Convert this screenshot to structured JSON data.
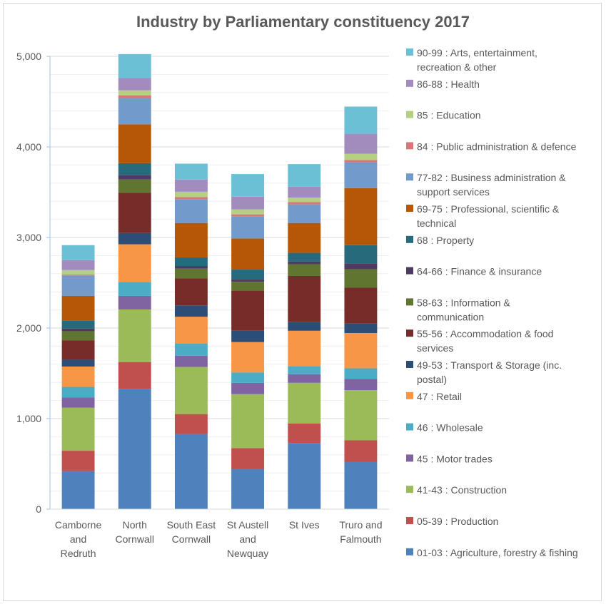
{
  "chart_data": {
    "type": "bar",
    "stacked": true,
    "title": "Industry by Parliamentary constituency 2017",
    "xlabel": "",
    "ylabel": "",
    "ylim": [
      0,
      5000
    ],
    "yticks": [
      0,
      1000,
      2000,
      3000,
      4000,
      5000
    ],
    "ytick_labels": [
      "0",
      "1,000",
      "2,000",
      "3,000",
      "4,000",
      "5,000"
    ],
    "grid": true,
    "legend_position": "right",
    "categories": [
      [
        "Camborne",
        "and",
        "Redruth"
      ],
      [
        "North",
        "Cornwall"
      ],
      [
        "South East",
        "Cornwall"
      ],
      [
        "St Austell",
        "and",
        "Newquay"
      ],
      [
        "St Ives"
      ],
      [
        "Truro and",
        "Falmouth"
      ]
    ],
    "series": [
      {
        "name": "01-03 : Agriculture, forestry & fishing",
        "legend_lines": [
          "01-03 : Agriculture, forestry & fishing"
        ],
        "color": "#4f81bd",
        "values": [
          420,
          1330,
          830,
          445,
          730,
          520
        ]
      },
      {
        "name": "05-39 : Production",
        "legend_lines": [
          "05-39 : Production"
        ],
        "color": "#c0504d",
        "values": [
          225,
          295,
          220,
          230,
          215,
          240
        ]
      },
      {
        "name": "41-43 : Construction",
        "legend_lines": [
          "41-43 : Construction"
        ],
        "color": "#9bbb59",
        "values": [
          475,
          580,
          520,
          595,
          450,
          555
        ]
      },
      {
        "name": "45 : Motor trades",
        "legend_lines": [
          "45 : Motor trades"
        ],
        "color": "#8064a2",
        "values": [
          115,
          150,
          125,
          125,
          95,
          125
        ]
      },
      {
        "name": "46 : Wholesale",
        "legend_lines": [
          "46 : Wholesale"
        ],
        "color": "#4bacc6",
        "values": [
          115,
          155,
          135,
          115,
          90,
          115
        ]
      },
      {
        "name": "47 : Retail",
        "legend_lines": [
          "47 : Retail"
        ],
        "color": "#f79646",
        "values": [
          225,
          415,
          295,
          335,
          390,
          390
        ]
      },
      {
        "name": "49-53 : Transport & Storage (inc. postal)",
        "legend_lines": [
          "49-53 : Transport & Storage (inc.",
          "postal)"
        ],
        "color": "#2c4d75",
        "values": [
          75,
          125,
          125,
          125,
          95,
          105
        ]
      },
      {
        "name": "55-56 : Accommodation & food services",
        "legend_lines": [
          "55-56 : Accommodation & food",
          "services"
        ],
        "color": "#772c2a",
        "values": [
          215,
          445,
          300,
          445,
          510,
          395
        ]
      },
      {
        "name": "58-63 : Information & communication",
        "legend_lines": [
          "58-63 : Information &",
          "communication"
        ],
        "color": "#5f7530",
        "values": [
          100,
          145,
          105,
          95,
          130,
          205
        ]
      },
      {
        "name": "64-66 : Finance & insurance",
        "legend_lines": [
          "64-66 : Finance & insurance"
        ],
        "color": "#4d3b62",
        "values": [
          30,
          50,
          30,
          25,
          30,
          65
        ]
      },
      {
        "name": "68 : Property",
        "legend_lines": [
          "68 : Property"
        ],
        "color": "#276a7c",
        "values": [
          90,
          130,
          95,
          110,
          95,
          200
        ]
      },
      {
        "name": "69-75 : Professional, scientific & technical",
        "legend_lines": [
          "69-75 : Professional, scientific &",
          "technical"
        ],
        "color": "#b65708",
        "values": [
          270,
          430,
          380,
          345,
          330,
          630
        ]
      },
      {
        "name": "77-82 : Business administration & support services",
        "legend_lines": [
          "77-82 : Business administration &",
          "support services"
        ],
        "color": "#729aca",
        "values": [
          225,
          285,
          260,
          245,
          205,
          285
        ]
      },
      {
        "name": "84 : Public administration & defence",
        "legend_lines": [
          "84 : Public administration & defence"
        ],
        "color": "#d6787a",
        "values": [
          10,
          35,
          25,
          20,
          25,
          25
        ]
      },
      {
        "name": "85 : Education",
        "legend_lines": [
          "85 : Education"
        ],
        "color": "#b4d080",
        "values": [
          50,
          55,
          60,
          55,
          50,
          70
        ]
      },
      {
        "name": "86-88 : Health",
        "legend_lines": [
          "86-88 : Health"
        ],
        "color": "#a28bbd",
        "values": [
          110,
          135,
          135,
          140,
          120,
          220
        ]
      },
      {
        "name": "90-99 : Arts, entertainment, recreation & other",
        "legend_lines": [
          "90-99 : Arts, entertainment,",
          "recreation & other"
        ],
        "color": "#6cc0d6",
        "values": [
          165,
          265,
          175,
          250,
          250,
          300
        ]
      }
    ]
  }
}
